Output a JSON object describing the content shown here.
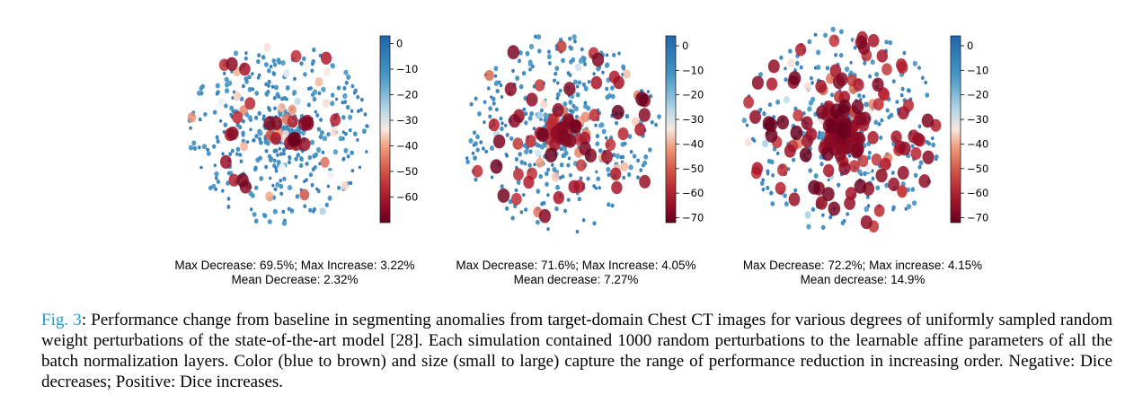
{
  "panels": [
    {
      "stats_line1": "Max Decrease: 69.5%;  Max Increase: 3.22%",
      "stats_line2": "Mean Decrease: 2.32%",
      "colorbar_ticks": [
        "0",
        "−10",
        "−20",
        "−30",
        "−40",
        "−50",
        "−60"
      ],
      "colorbar_range": [
        -70,
        3
      ]
    },
    {
      "stats_line1": "Max Decrease: 71.6%; Max Increase: 4.05%",
      "stats_line2": "Mean decrease: 7.27%",
      "colorbar_ticks": [
        "0",
        "−10",
        "−20",
        "−30",
        "−40",
        "−50",
        "−60",
        "−70"
      ],
      "colorbar_range": [
        -72,
        4
      ]
    },
    {
      "stats_line1": "Max Decrease: 72.2%;   Max increase: 4.15%",
      "stats_line2": "Mean decrease: 14.9%",
      "colorbar_ticks": [
        "0",
        "−10",
        "−20",
        "−30",
        "−40",
        "−50",
        "−60",
        "−70"
      ],
      "colorbar_range": [
        -72,
        4
      ]
    }
  ],
  "chart_data": [
    {
      "type": "scatter",
      "title": "",
      "colormap": "RdBu",
      "colorbar_ticks": [
        0,
        -10,
        -20,
        -30,
        -40,
        -50,
        -60
      ],
      "mean_decrease": 2.32,
      "max_decrease": 69.5,
      "max_increase": 3.22
    },
    {
      "type": "scatter",
      "title": "",
      "colormap": "RdBu",
      "colorbar_ticks": [
        0,
        -10,
        -20,
        -30,
        -40,
        -50,
        -60,
        -70
      ],
      "mean_decrease": 7.27,
      "max_decrease": 71.6,
      "max_increase": 4.05
    },
    {
      "type": "scatter",
      "title": "",
      "colormap": "RdBu",
      "colorbar_ticks": [
        0,
        -10,
        -20,
        -30,
        -40,
        -50,
        -60,
        -70
      ],
      "mean_decrease": 14.9,
      "max_decrease": 72.2,
      "max_increase": 4.15
    }
  ],
  "caption": {
    "label": "Fig. 3",
    "text": ": Performance change from baseline in segmenting anomalies from target-domain Chest CT images for various degrees of uniformly sampled random weight perturbations of the state-of-the-art model [28]. Each simulation contained 1000 random perturbations to the learnable affine parameters of all the batch normalization layers. Color (blue to brown) and size (small to large) capture the range of performance reduction in increasing order. Negative: Dice decreases; Positive: Dice increases."
  },
  "colors": {
    "dark_red": "#67001f",
    "red": "#d6604d",
    "white": "#f7f7f7",
    "blue": "#4393c3",
    "dark_blue": "#2166ac",
    "caption_label": "#1f9bd7"
  }
}
